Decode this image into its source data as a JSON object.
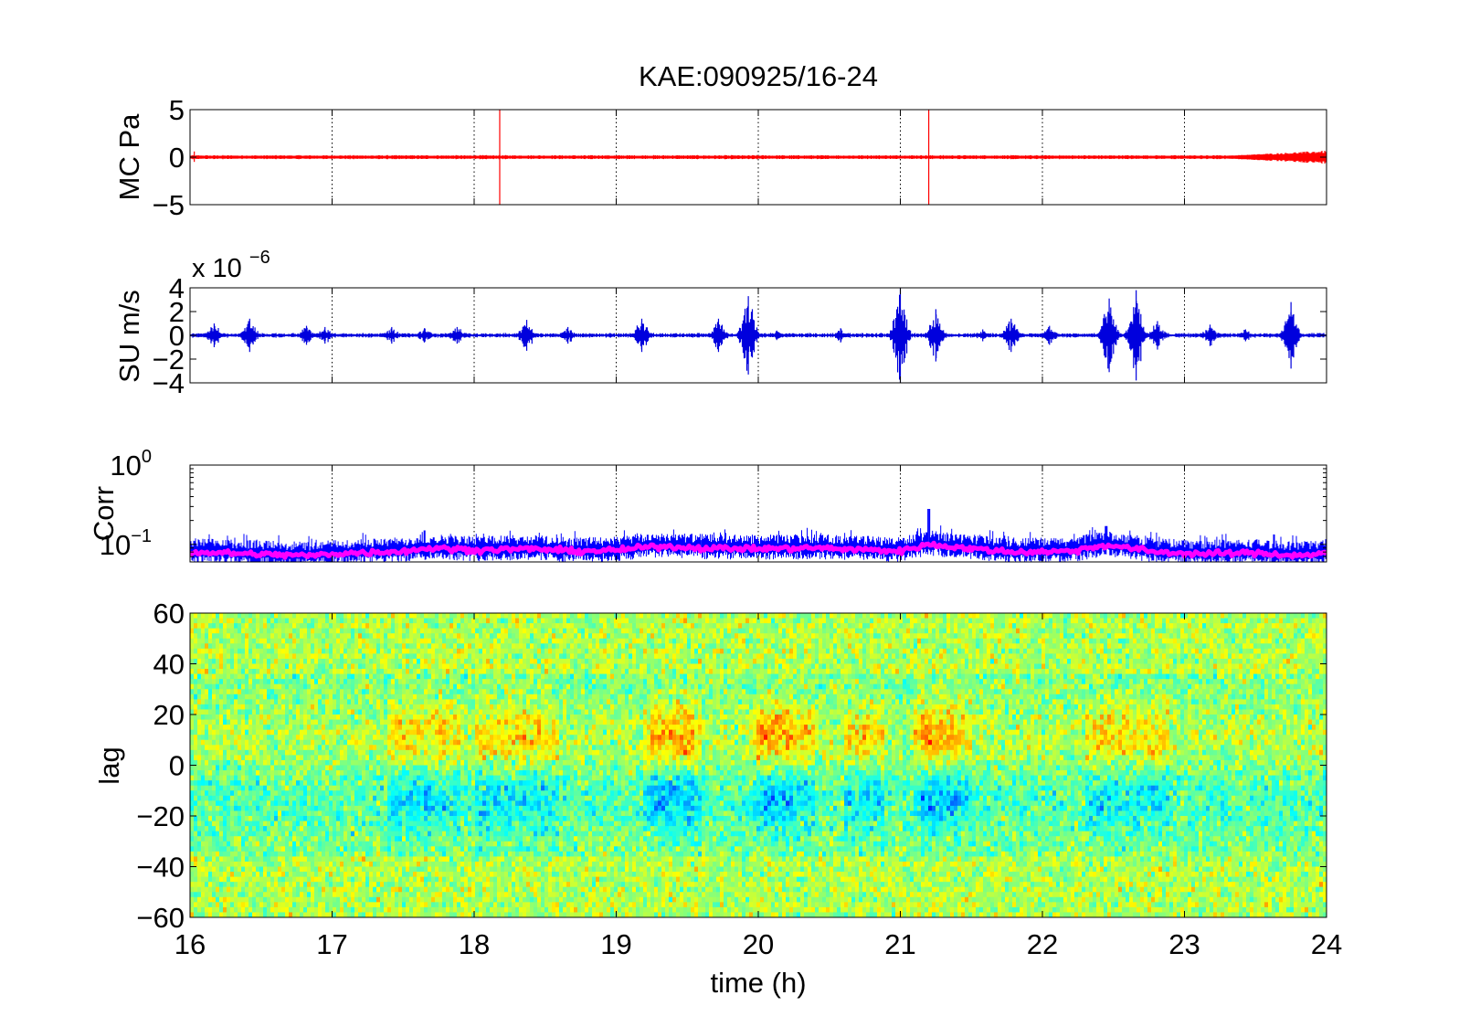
{
  "figure": {
    "title": "KAE:090925/16-24",
    "xlabel": "time (h)"
  },
  "chart_data": [
    {
      "type": "line",
      "panel": "MC pressure",
      "ylabel": "MC Pa",
      "xlim": [
        16,
        24
      ],
      "ylim": [
        -5,
        5
      ],
      "xticks": [
        16,
        17,
        18,
        19,
        20,
        21,
        22,
        23,
        24
      ],
      "yticks": [
        -5,
        0,
        5
      ],
      "ytick_labels": [
        "−5",
        "0",
        "5"
      ],
      "grid": "x-dotted",
      "series": [
        {
          "color": "#ff0000",
          "baseline": 0,
          "noise_amplitude": 0.15,
          "amplitude_growth_after_h": 23.3,
          "max_amplitude_at_end": 0.7,
          "spikes": [
            {
              "x": 16.03,
              "ymin": -0.5,
              "ymax": 0.6
            },
            {
              "x": 18.18,
              "ymin": -5,
              "ymax": 5
            },
            {
              "x": 21.2,
              "ymin": -5,
              "ymax": 5
            }
          ]
        }
      ]
    },
    {
      "type": "line",
      "panel": "SU velocity",
      "ylabel": "SU m/s",
      "scale_label": "x 10",
      "scale_exponent": "−6",
      "xlim": [
        16,
        24
      ],
      "ylim": [
        -4,
        4
      ],
      "xticks": [
        16,
        17,
        18,
        19,
        20,
        21,
        22,
        23,
        24
      ],
      "yticks": [
        -4,
        -2,
        0,
        2,
        4
      ],
      "ytick_labels": [
        "−4",
        "−2",
        "0",
        "2",
        "4"
      ],
      "grid": "x-dotted",
      "series": [
        {
          "color": "#0000dd",
          "baseline": 0,
          "noise_amplitude": 0.15,
          "bursts": [
            {
              "x": 16.17,
              "amp": 1.0
            },
            {
              "x": 16.42,
              "amp": 1.4
            },
            {
              "x": 16.82,
              "amp": 0.8
            },
            {
              "x": 16.95,
              "amp": 0.7
            },
            {
              "x": 17.42,
              "amp": 0.7
            },
            {
              "x": 17.65,
              "amp": 0.6
            },
            {
              "x": 17.88,
              "amp": 0.7
            },
            {
              "x": 18.37,
              "amp": 1.3
            },
            {
              "x": 18.66,
              "amp": 0.7
            },
            {
              "x": 19.18,
              "amp": 1.4
            },
            {
              "x": 19.72,
              "amp": 1.4
            },
            {
              "x": 19.93,
              "amp": 3.3
            },
            {
              "x": 20.13,
              "amp": 0.4
            },
            {
              "x": 20.58,
              "amp": 0.6
            },
            {
              "x": 21.0,
              "amp": 4.0
            },
            {
              "x": 21.25,
              "amp": 2.2
            },
            {
              "x": 21.58,
              "amp": 0.5
            },
            {
              "x": 21.78,
              "amp": 1.4
            },
            {
              "x": 22.05,
              "amp": 0.8
            },
            {
              "x": 22.47,
              "amp": 3.1
            },
            {
              "x": 22.66,
              "amp": 3.8
            },
            {
              "x": 22.81,
              "amp": 1.2
            },
            {
              "x": 23.18,
              "amp": 0.9
            },
            {
              "x": 23.43,
              "amp": 0.5
            },
            {
              "x": 23.75,
              "amp": 2.8
            }
          ]
        }
      ]
    },
    {
      "type": "line",
      "panel": "Correlation",
      "ylabel": "Corr",
      "yscale": "log",
      "xlim": [
        16,
        24
      ],
      "ylim": [
        0.06,
        1
      ],
      "xticks": [
        16,
        17,
        18,
        19,
        20,
        21,
        22,
        23,
        24
      ],
      "ytick_labels": [
        {
          "base": "10",
          "exp": "0",
          "value": 1
        },
        {
          "base": "10",
          "exp": "−1",
          "value": 0.1
        }
      ],
      "grid": "x-dotted",
      "series": [
        {
          "role": "raw correlation",
          "color": "#0000ff",
          "typical_range": [
            0.06,
            0.12
          ],
          "peaks": [
            {
              "x": 21.2,
              "y": 0.28
            },
            {
              "x": 22.45,
              "y": 0.17
            },
            {
              "x": 17.65,
              "y": 0.15
            }
          ]
        },
        {
          "role": "smoothed correlation",
          "color": "#ff00ff",
          "profile": [
            {
              "x": 16.0,
              "y": 0.08
            },
            {
              "x": 16.5,
              "y": 0.075
            },
            {
              "x": 16.85,
              "y": 0.072
            },
            {
              "x": 17.0,
              "y": 0.076
            },
            {
              "x": 17.5,
              "y": 0.082
            },
            {
              "x": 17.7,
              "y": 0.09
            },
            {
              "x": 18.0,
              "y": 0.085
            },
            {
              "x": 18.4,
              "y": 0.088
            },
            {
              "x": 18.7,
              "y": 0.082
            },
            {
              "x": 19.0,
              "y": 0.084
            },
            {
              "x": 19.3,
              "y": 0.095
            },
            {
              "x": 19.6,
              "y": 0.09
            },
            {
              "x": 20.0,
              "y": 0.088
            },
            {
              "x": 20.4,
              "y": 0.09
            },
            {
              "x": 20.8,
              "y": 0.085
            },
            {
              "x": 21.0,
              "y": 0.082
            },
            {
              "x": 21.2,
              "y": 0.1
            },
            {
              "x": 21.5,
              "y": 0.088
            },
            {
              "x": 21.8,
              "y": 0.08
            },
            {
              "x": 22.2,
              "y": 0.082
            },
            {
              "x": 22.45,
              "y": 0.098
            },
            {
              "x": 22.8,
              "y": 0.08
            },
            {
              "x": 23.1,
              "y": 0.076
            },
            {
              "x": 23.5,
              "y": 0.078
            },
            {
              "x": 23.8,
              "y": 0.072
            },
            {
              "x": 24.0,
              "y": 0.078
            }
          ]
        }
      ]
    },
    {
      "type": "heatmap",
      "panel": "Lagged cross-correlation",
      "ylabel": "lag",
      "xlim": [
        16,
        24
      ],
      "ylim": [
        -60,
        60
      ],
      "xticks": [
        16,
        17,
        18,
        19,
        20,
        21,
        22,
        23,
        24
      ],
      "yticks": [
        -60,
        -40,
        -20,
        0,
        20,
        40,
        60
      ],
      "ytick_labels": [
        "−60",
        "−40",
        "−20",
        "0",
        "20",
        "40",
        "60"
      ],
      "colormap": "jet",
      "structure": {
        "positive_band_center_lag": 10,
        "negative_band_center_lag": -12,
        "band_width_lag": 14,
        "strong_intervals_h": [
          [
            17.4,
            17.9
          ],
          [
            18.0,
            18.6
          ],
          [
            19.2,
            19.6
          ],
          [
            19.95,
            20.4
          ],
          [
            20.6,
            20.9
          ],
          [
            21.1,
            21.5
          ],
          [
            22.3,
            22.9
          ]
        ],
        "peak_intervals_h": [
          [
            19.25,
            19.55
          ],
          [
            20.0,
            20.25
          ],
          [
            21.15,
            21.4
          ]
        ]
      }
    }
  ]
}
